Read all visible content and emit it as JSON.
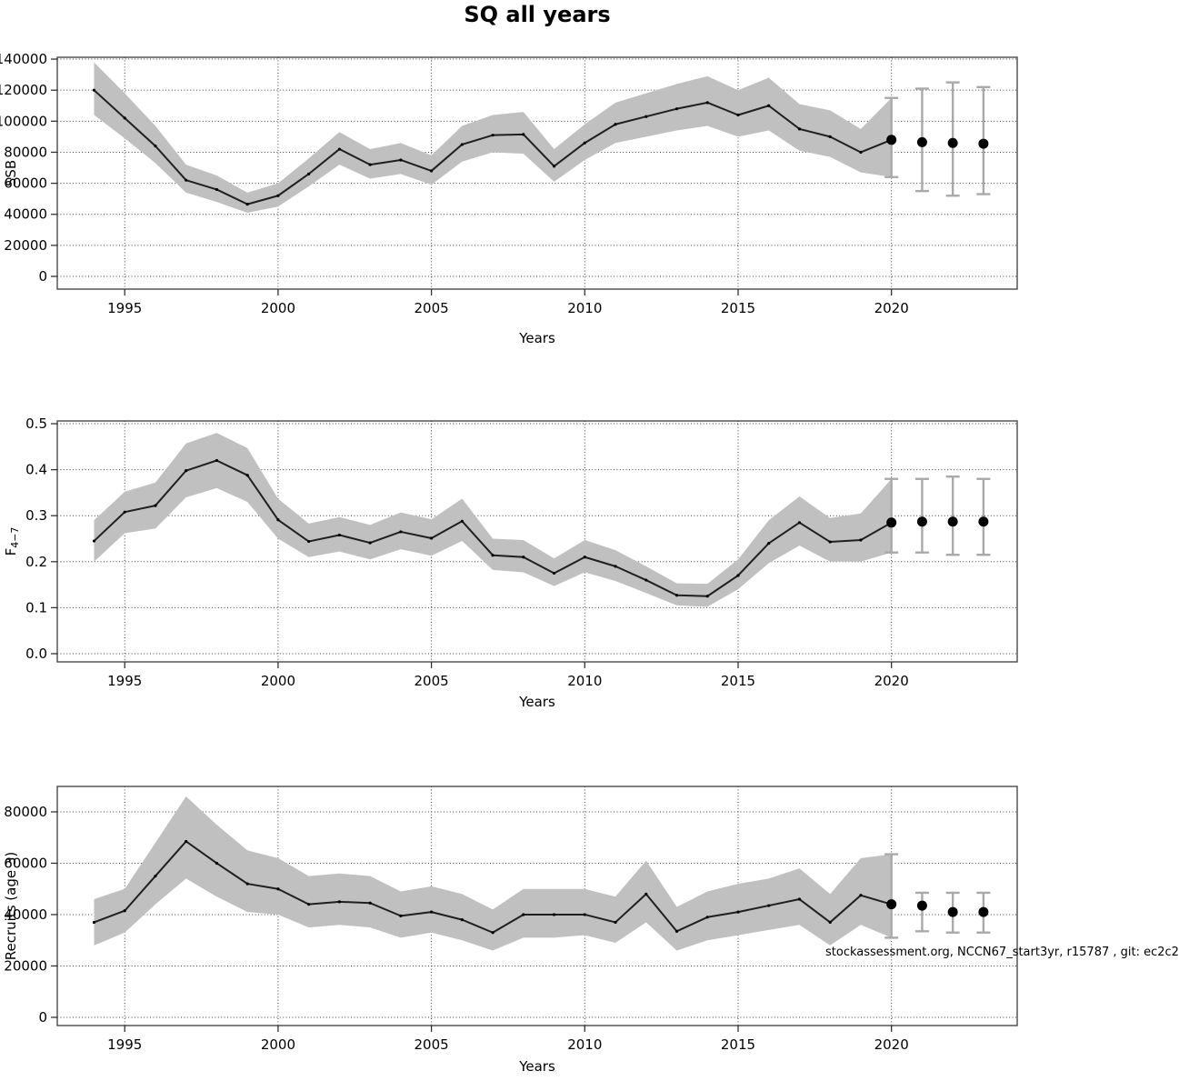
{
  "title": "SQ all years",
  "watermark": "stockassessment.org, NCCN67_start3yr, r15787 , git: ec2c2",
  "colors": {
    "background": "#ffffff",
    "band": "#c0c0c0",
    "line": "#1f1f1f",
    "point": "#000000",
    "errorbar": "#a9a9a9",
    "grid": "#2b2b2b",
    "frame": "#4a4a4a",
    "text": "#000000"
  },
  "chart_data": [
    {
      "type": "line",
      "name": "ssb",
      "ylabel": "SSB",
      "xlabel": "Years",
      "grid": true,
      "legend": null,
      "x": [
        1994,
        1995,
        1996,
        1997,
        1998,
        1999,
        2000,
        2001,
        2002,
        2003,
        2004,
        2005,
        2006,
        2007,
        2008,
        2009,
        2010,
        2011,
        2012,
        2013,
        2014,
        2015,
        2016,
        2017,
        2018,
        2019,
        2020
      ],
      "values": [
        120000,
        102000,
        84000,
        62000,
        56000,
        46500,
        52000,
        66000,
        82000,
        72000,
        75000,
        68000,
        85000,
        91000,
        91500,
        71000,
        86000,
        98000,
        103000,
        108000,
        112000,
        104000,
        110000,
        95000,
        90000,
        80000,
        88000
      ],
      "band_lower": [
        104000,
        89000,
        73000,
        54000,
        48000,
        41000,
        45000,
        58000,
        72000,
        63000,
        66000,
        59000,
        74000,
        80000,
        79000,
        61000,
        75000,
        86000,
        90000,
        94000,
        97000,
        90000,
        94000,
        81000,
        77000,
        67000,
        64000
      ],
      "band_upper": [
        138000,
        118000,
        97000,
        72000,
        65000,
        54000,
        60000,
        76000,
        93000,
        82000,
        86000,
        78000,
        97000,
        104000,
        106000,
        82000,
        98000,
        112000,
        118000,
        124000,
        129000,
        120000,
        128000,
        111000,
        107000,
        95000,
        115000
      ],
      "forecast": {
        "x": [
          2020,
          2021,
          2022,
          2023
        ],
        "values": [
          88000,
          86500,
          86000,
          85500
        ],
        "lower": [
          64000,
          55000,
          52000,
          53000
        ],
        "upper": [
          115000,
          121000,
          125000,
          122000
        ]
      },
      "xticks": [
        1995,
        2000,
        2005,
        2010,
        2015,
        2020
      ],
      "ytick_vals": [
        0,
        20000,
        40000,
        60000,
        80000,
        100000,
        120000,
        140000
      ],
      "ytick_labels": [
        "0",
        "20000",
        "40000",
        "60000",
        "80000",
        "100000",
        "120000",
        "140000"
      ],
      "xlim": [
        1992.8,
        2024.1
      ],
      "ylim": [
        -8200,
        141200
      ]
    },
    {
      "type": "line",
      "name": "f4-7",
      "ylabel": "F_{4−7}",
      "xlabel": "Years",
      "grid": true,
      "legend": null,
      "x": [
        1994,
        1995,
        1996,
        1997,
        1998,
        1999,
        2000,
        2001,
        2002,
        2003,
        2004,
        2005,
        2006,
        2007,
        2008,
        2009,
        2010,
        2011,
        2012,
        2013,
        2014,
        2015,
        2016,
        2017,
        2018,
        2019,
        2020
      ],
      "values": [
        0.245,
        0.308,
        0.322,
        0.398,
        0.42,
        0.388,
        0.291,
        0.244,
        0.258,
        0.241,
        0.265,
        0.251,
        0.288,
        0.214,
        0.21,
        0.175,
        0.21,
        0.19,
        0.16,
        0.127,
        0.125,
        0.17,
        0.24,
        0.285,
        0.243,
        0.247,
        0.285
      ],
      "band_lower": [
        0.2,
        0.262,
        0.272,
        0.34,
        0.36,
        0.33,
        0.25,
        0.21,
        0.222,
        0.205,
        0.227,
        0.213,
        0.245,
        0.182,
        0.177,
        0.147,
        0.177,
        0.158,
        0.132,
        0.105,
        0.102,
        0.14,
        0.197,
        0.235,
        0.2,
        0.2,
        0.22
      ],
      "band_upper": [
        0.29,
        0.352,
        0.372,
        0.457,
        0.48,
        0.447,
        0.337,
        0.283,
        0.297,
        0.28,
        0.307,
        0.292,
        0.337,
        0.25,
        0.247,
        0.207,
        0.247,
        0.225,
        0.19,
        0.153,
        0.152,
        0.205,
        0.29,
        0.342,
        0.295,
        0.305,
        0.38
      ],
      "forecast": {
        "x": [
          2020,
          2021,
          2022,
          2023
        ],
        "values": [
          0.285,
          0.287,
          0.287,
          0.287
        ],
        "lower": [
          0.22,
          0.22,
          0.215,
          0.215
        ],
        "upper": [
          0.38,
          0.38,
          0.385,
          0.38
        ]
      },
      "xticks": [
        1995,
        2000,
        2005,
        2010,
        2015,
        2020
      ],
      "ytick_vals": [
        0.0,
        0.1,
        0.2,
        0.3,
        0.4,
        0.5
      ],
      "ytick_labels": [
        "0.0",
        "0.1",
        "0.2",
        "0.3",
        "0.4",
        "0.5"
      ],
      "xlim": [
        1992.8,
        2024.1
      ],
      "ylim": [
        -0.0178,
        0.506
      ]
    },
    {
      "type": "line",
      "name": "recruits",
      "ylabel": "Recruits (age 3)",
      "xlabel": "Years",
      "grid": true,
      "legend": null,
      "x": [
        1994,
        1995,
        1996,
        1997,
        1998,
        1999,
        2000,
        2001,
        2002,
        2003,
        2004,
        2005,
        2006,
        2007,
        2008,
        2009,
        2010,
        2011,
        2012,
        2013,
        2014,
        2015,
        2016,
        2017,
        2018,
        2019,
        2020
      ],
      "values": [
        37000,
        41500,
        55000,
        68500,
        60000,
        52000,
        50000,
        44000,
        45000,
        44500,
        39500,
        41000,
        38000,
        33000,
        40000,
        40000,
        40000,
        37000,
        48000,
        33500,
        39000,
        41000,
        43500,
        46000,
        37000,
        47500,
        44000
      ],
      "band_lower": [
        28000,
        33000,
        44000,
        54000,
        47000,
        41000,
        40000,
        35000,
        36000,
        35000,
        31000,
        33000,
        30000,
        26000,
        31000,
        31000,
        32000,
        29000,
        37000,
        26000,
        30000,
        32000,
        34000,
        36000,
        28000,
        36000,
        31000
      ],
      "band_upper": [
        46000,
        50000,
        68000,
        86000,
        75000,
        65000,
        62000,
        55000,
        56000,
        55000,
        49000,
        51000,
        48000,
        42000,
        50000,
        50000,
        50000,
        47000,
        61000,
        43000,
        49000,
        52000,
        54000,
        58000,
        48000,
        62000,
        63500
      ],
      "forecast": {
        "x": [
          2020,
          2021,
          2022,
          2023
        ],
        "values": [
          44000,
          43500,
          41000,
          41000
        ],
        "lower": [
          31000,
          33500,
          33000,
          33000
        ],
        "upper": [
          63500,
          48500,
          48500,
          48500
        ]
      },
      "xticks": [
        1995,
        2000,
        2005,
        2010,
        2015,
        2020
      ],
      "ytick_vals": [
        0,
        20000,
        40000,
        60000,
        80000
      ],
      "ytick_labels": [
        "0",
        "20000",
        "40000",
        "60000",
        "80000"
      ],
      "xlim": [
        1992.8,
        2024.1
      ],
      "ylim": [
        -3200,
        89900
      ]
    }
  ]
}
